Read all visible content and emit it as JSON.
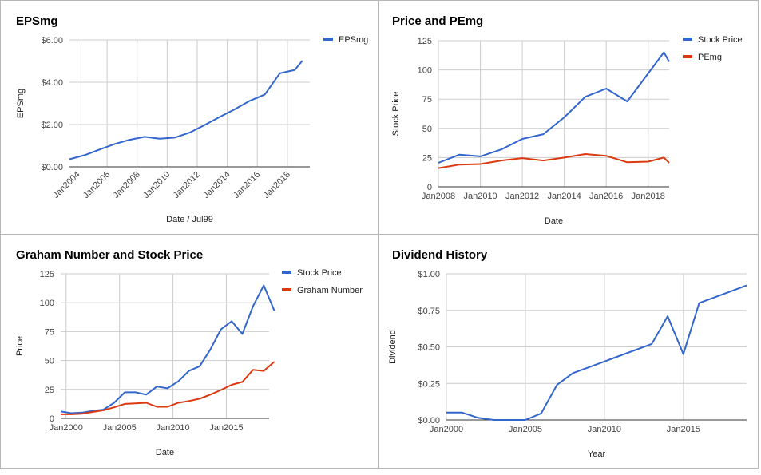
{
  "chart_data": [
    {
      "id": "eps",
      "type": "line",
      "title": "EPSmg",
      "xlabel": "Date / Jul99",
      "ylabel": "EPSmg",
      "x_type": "date",
      "xlim": [
        "2003-07-01",
        "2019-07-01"
      ],
      "ylim": [
        0,
        6
      ],
      "y_ticks": [
        0,
        2,
        4,
        6
      ],
      "y_tick_labels": [
        "$0.00",
        "$2.00",
        "$4.00",
        "$6.00"
      ],
      "x_ticks": [
        "2004-01-01",
        "2006-01-01",
        "2008-01-01",
        "2010-01-01",
        "2012-01-01",
        "2014-01-01",
        "2016-01-01",
        "2018-01-01"
      ],
      "x_tick_labels": [
        "Jan2004",
        "Jan2006",
        "Jan2008",
        "Jan2010",
        "Jan2012",
        "Jan2014",
        "Jan2016",
        "Jan2018"
      ],
      "x_tick_rotate": true,
      "grid": true,
      "legend_position": "right",
      "series": [
        {
          "name": "EPSmg",
          "color": "#3366cc",
          "points": [
            [
              "2003-07-01",
              0.36
            ],
            [
              "2004-07-01",
              0.55
            ],
            [
              "2005-07-01",
              0.82
            ],
            [
              "2006-07-01",
              1.08
            ],
            [
              "2007-07-01",
              1.28
            ],
            [
              "2008-07-01",
              1.42
            ],
            [
              "2009-07-01",
              1.33
            ],
            [
              "2010-07-01",
              1.38
            ],
            [
              "2011-07-01",
              1.62
            ],
            [
              "2012-07-01",
              1.98
            ],
            [
              "2013-07-01",
              2.36
            ],
            [
              "2014-07-01",
              2.72
            ],
            [
              "2015-07-01",
              3.12
            ],
            [
              "2016-07-01",
              3.42
            ],
            [
              "2017-07-01",
              4.42
            ],
            [
              "2018-07-01",
              4.58
            ],
            [
              "2019-01-01",
              5.02
            ]
          ]
        }
      ]
    },
    {
      "id": "price",
      "type": "line",
      "title": "Price and PEmg",
      "xlabel": "Date",
      "ylabel": "Stock Price",
      "x_type": "date",
      "xlim": [
        "2008-01-01",
        "2019-01-01"
      ],
      "ylim": [
        0,
        125
      ],
      "y_ticks": [
        0,
        25,
        50,
        75,
        100,
        125
      ],
      "y_tick_labels": [
        "0",
        "25",
        "50",
        "75",
        "100",
        "125"
      ],
      "x_ticks": [
        "2008-01-01",
        "2010-01-01",
        "2012-01-01",
        "2014-01-01",
        "2016-01-01",
        "2018-01-01"
      ],
      "x_tick_labels": [
        "Jan2008",
        "Jan2010",
        "Jan2012",
        "Jan2014",
        "Jan2016",
        "Jan2018"
      ],
      "x_tick_rotate": false,
      "grid": true,
      "legend_position": "right",
      "series": [
        {
          "name": "Stock Price",
          "color": "#3366cc",
          "points": [
            [
              "2008-01-01",
              20.5
            ],
            [
              "2009-01-01",
              27.5
            ],
            [
              "2010-01-01",
              26.0
            ],
            [
              "2011-01-01",
              32.0
            ],
            [
              "2012-01-01",
              41.0
            ],
            [
              "2013-01-01",
              45.0
            ],
            [
              "2014-01-01",
              59.5
            ],
            [
              "2015-01-01",
              77.0
            ],
            [
              "2016-01-01",
              84.0
            ],
            [
              "2017-01-01",
              73.0
            ],
            [
              "2018-01-01",
              97.0
            ],
            [
              "2018-10-01",
              115.0
            ],
            [
              "2019-01-01",
              107.0
            ]
          ]
        },
        {
          "name": "PEmg",
          "color": "#dc3912",
          "points": [
            [
              "2008-01-01",
              16.0
            ],
            [
              "2009-01-01",
              19.0
            ],
            [
              "2010-01-01",
              19.5
            ],
            [
              "2011-01-01",
              22.5
            ],
            [
              "2012-01-01",
              24.5
            ],
            [
              "2013-01-01",
              22.5
            ],
            [
              "2014-01-01",
              25.0
            ],
            [
              "2015-01-01",
              28.0
            ],
            [
              "2016-01-01",
              26.5
            ],
            [
              "2017-01-01",
              21.0
            ],
            [
              "2018-01-01",
              21.5
            ],
            [
              "2018-10-01",
              25.0
            ],
            [
              "2019-01-01",
              20.5
            ]
          ]
        }
      ]
    },
    {
      "id": "graham",
      "type": "line",
      "title": "Graham Number and Stock Price",
      "xlabel": "Date",
      "ylabel": "Price",
      "x_type": "date",
      "xlim": [
        "1999-07-01",
        "2019-01-01"
      ],
      "ylim": [
        0,
        125
      ],
      "y_ticks": [
        0,
        25,
        50,
        75,
        100,
        125
      ],
      "y_tick_labels": [
        "0",
        "25",
        "50",
        "75",
        "100",
        "125"
      ],
      "x_ticks": [
        "2000-01-01",
        "2005-01-01",
        "2010-01-01",
        "2015-01-01"
      ],
      "x_tick_labels": [
        "Jan2000",
        "Jan2005",
        "Jan2010",
        "Jan2015"
      ],
      "x_tick_rotate": false,
      "grid": true,
      "legend_position": "right",
      "series": [
        {
          "name": "Stock Price",
          "color": "#3366cc",
          "points": [
            [
              "1999-07-01",
              6.0
            ],
            [
              "2000-07-01",
              4.5
            ],
            [
              "2001-07-01",
              5.0
            ],
            [
              "2002-07-01",
              6.5
            ],
            [
              "2003-07-01",
              7.5
            ],
            [
              "2004-07-01",
              13.5
            ],
            [
              "2005-07-01",
              22.5
            ],
            [
              "2006-07-01",
              22.5
            ],
            [
              "2007-07-01",
              20.5
            ],
            [
              "2008-07-01",
              27.5
            ],
            [
              "2009-07-01",
              26.0
            ],
            [
              "2010-07-01",
              32.0
            ],
            [
              "2011-07-01",
              41.0
            ],
            [
              "2012-07-01",
              45.0
            ],
            [
              "2013-07-01",
              59.5
            ],
            [
              "2014-07-01",
              77.0
            ],
            [
              "2015-07-01",
              84.0
            ],
            [
              "2016-07-01",
              73.0
            ],
            [
              "2017-07-01",
              97.0
            ],
            [
              "2018-07-01",
              115.0
            ],
            [
              "2019-07-01",
              93.0
            ]
          ]
        },
        {
          "name": "Graham Number",
          "color": "#dc3912",
          "points": [
            [
              "1999-07-01",
              3.5
            ],
            [
              "2000-07-01",
              3.5
            ],
            [
              "2001-07-01",
              4.0
            ],
            [
              "2002-07-01",
              5.5
            ],
            [
              "2003-07-01",
              7.0
            ],
            [
              "2004-07-01",
              9.5
            ],
            [
              "2005-07-01",
              12.5
            ],
            [
              "2006-07-01",
              13.0
            ],
            [
              "2007-07-01",
              13.5
            ],
            [
              "2008-07-01",
              10.0
            ],
            [
              "2009-07-01",
              10.0
            ],
            [
              "2010-07-01",
              13.5
            ],
            [
              "2011-07-01",
              15.0
            ],
            [
              "2012-07-01",
              17.0
            ],
            [
              "2013-07-01",
              20.5
            ],
            [
              "2014-07-01",
              24.5
            ],
            [
              "2015-07-01",
              29.0
            ],
            [
              "2016-07-01",
              31.5
            ],
            [
              "2017-07-01",
              42.0
            ],
            [
              "2018-07-01",
              41.0
            ],
            [
              "2019-07-01",
              49.0
            ]
          ]
        }
      ]
    },
    {
      "id": "dividend",
      "type": "line",
      "title": "Dividend History",
      "xlabel": "Year",
      "ylabel": "Dividend",
      "x_type": "year",
      "xlim": [
        2000,
        2019
      ],
      "ylim": [
        0,
        1
      ],
      "y_ticks": [
        0,
        0.25,
        0.5,
        0.75,
        1
      ],
      "y_tick_labels": [
        "$0.00",
        "$0.25",
        "$0.50",
        "$0.75",
        "$1.00"
      ],
      "x_ticks": [
        2000,
        2005,
        2010,
        2015
      ],
      "x_tick_labels": [
        "Jan2000",
        "Jan2005",
        "Jan2010",
        "Jan2015"
      ],
      "x_tick_rotate": false,
      "grid": true,
      "legend_position": "none",
      "series": [
        {
          "color": "#3366cc",
          "points": [
            [
              2000,
              0.05
            ],
            [
              2001,
              0.05
            ],
            [
              2002,
              0.015
            ],
            [
              2003,
              0.0
            ],
            [
              2005,
              0.0
            ],
            [
              2006,
              0.045
            ],
            [
              2007,
              0.24
            ],
            [
              2008,
              0.32
            ],
            [
              2013,
              0.52
            ],
            [
              2014,
              0.71
            ],
            [
              2015,
              0.45
            ],
            [
              2016,
              0.8
            ],
            [
              2019,
              0.92
            ]
          ]
        }
      ]
    }
  ]
}
